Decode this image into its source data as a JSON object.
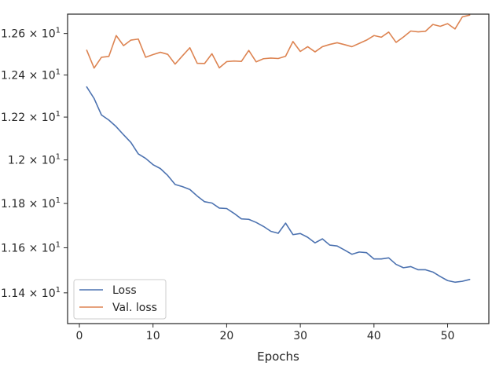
{
  "chart_data": {
    "type": "line",
    "title": "",
    "xlabel": "Epochs",
    "ylabel": "",
    "xlim": [
      -1.6,
      55.6
    ],
    "ylim": [
      11.2655,
      12.6945
    ],
    "x_ticks": [
      0,
      10,
      20,
      30,
      40,
      50
    ],
    "y_ticks": [
      {
        "value": 11.4,
        "label": "1.14 × 10^1"
      },
      {
        "value": 11.6,
        "label": "1.16 × 10^1"
      },
      {
        "value": 11.8,
        "label": "1.18 × 10^1"
      },
      {
        "value": 12.0,
        "label": "1.2 × 10^1"
      },
      {
        "value": 12.2,
        "label": "1.22 × 10^1"
      },
      {
        "value": 12.4,
        "label": "1.24 × 10^1"
      },
      {
        "value": 12.6,
        "label": "1.26 × 10^1"
      }
    ],
    "log_scale_y": true,
    "grid": false,
    "legend_position": "lower-left",
    "x": [
      1,
      2,
      3,
      4,
      5,
      6,
      7,
      8,
      9,
      10,
      11,
      12,
      13,
      14,
      15,
      16,
      17,
      18,
      19,
      20,
      21,
      22,
      23,
      24,
      25,
      26,
      27,
      28,
      29,
      30,
      31,
      32,
      33,
      34,
      35,
      36,
      37,
      38,
      39,
      40,
      41,
      42,
      43,
      44,
      45,
      46,
      47,
      48,
      49,
      50,
      51,
      52,
      53
    ],
    "series": [
      {
        "name": "Loss",
        "color": "#4c72b0",
        "values": [
          12.343,
          12.288,
          12.21,
          12.186,
          12.155,
          12.117,
          12.081,
          12.028,
          12.007,
          11.978,
          11.96,
          11.928,
          11.887,
          11.877,
          11.864,
          11.834,
          11.808,
          11.802,
          11.779,
          11.777,
          11.755,
          11.73,
          11.728,
          11.714,
          11.696,
          11.674,
          11.665,
          11.711,
          11.659,
          11.664,
          11.647,
          11.622,
          11.64,
          11.612,
          11.608,
          11.59,
          11.571,
          11.581,
          11.578,
          11.55,
          11.55,
          11.555,
          11.526,
          11.511,
          11.516,
          11.502,
          11.502,
          11.492,
          11.472,
          11.454,
          11.447,
          11.451,
          11.459
        ]
      },
      {
        "name": "Val. loss",
        "color": "#dd8452",
        "values": [
          12.519,
          12.433,
          12.485,
          12.489,
          12.59,
          12.541,
          12.568,
          12.573,
          12.485,
          12.498,
          12.509,
          12.499,
          12.452,
          12.492,
          12.531,
          12.456,
          12.455,
          12.502,
          12.434,
          12.464,
          12.467,
          12.465,
          12.518,
          12.463,
          12.478,
          12.481,
          12.479,
          12.49,
          12.561,
          12.513,
          12.536,
          12.511,
          12.536,
          12.547,
          12.555,
          12.546,
          12.536,
          12.552,
          12.568,
          12.59,
          12.582,
          12.607,
          12.557,
          12.583,
          12.612,
          12.608,
          12.611,
          12.644,
          12.635,
          12.648,
          12.622,
          12.681,
          12.69
        ]
      }
    ]
  }
}
